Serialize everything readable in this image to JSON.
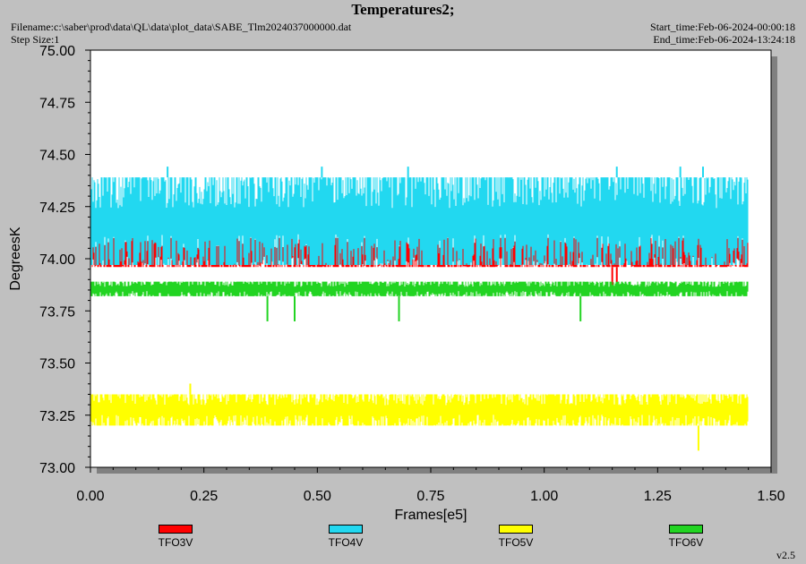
{
  "header": {
    "title": "Temperatures2;",
    "filename": "Filename:c:\\saber\\prod\\data\\QL\\data\\plot_data\\SABE_Tlm2024037000000.dat",
    "step_size": "Step Size:1",
    "start_time": "Start_time:Feb-06-2024-00:00:18",
    "end_time": "End_time:Feb-06-2024-13:24:18"
  },
  "version": "v2.5",
  "colors": {
    "plot_bg": "#ffffff",
    "page_bg": "#c0c0c0",
    "shadow": "#808080"
  },
  "chart_data": {
    "type": "line",
    "xlabel": "Frames[e5]",
    "ylabel": "DegreesK",
    "xlim": [
      0.0,
      1.5
    ],
    "ylim": [
      73.0,
      75.0
    ],
    "x_ticks": [
      "0.00",
      "0.25",
      "0.50",
      "0.75",
      "1.00",
      "1.25",
      "1.50"
    ],
    "y_ticks": [
      "73.00",
      "73.25",
      "73.50",
      "73.75",
      "74.00",
      "74.25",
      "74.50",
      "74.75",
      "75.00"
    ],
    "x_data_end": 1.45,
    "legend_position": "bottom",
    "series": [
      {
        "name": "TFO3V",
        "color": "#ff0000",
        "base": 74.0,
        "range": [
          73.96,
          74.1
        ],
        "spikes_low": [
          1.15,
          1.16
        ]
      },
      {
        "name": "TFO4V",
        "color": "#22d8f0",
        "base": 74.17,
        "range": [
          73.97,
          74.39
        ],
        "spikes_high": [
          0.17,
          0.51,
          0.7,
          1.16,
          1.3,
          1.35
        ]
      },
      {
        "name": "TFO5V",
        "color": "#ffff00",
        "base": 73.29,
        "range": [
          73.2,
          73.35
        ],
        "spikes_high": [
          0.22
        ],
        "spikes_low": [
          1.34
        ]
      },
      {
        "name": "TFO6V",
        "color": "#22d422",
        "base": 73.86,
        "range": [
          73.82,
          73.89
        ],
        "spikes_low": [
          0.39,
          0.45,
          0.68,
          1.08
        ]
      }
    ]
  }
}
